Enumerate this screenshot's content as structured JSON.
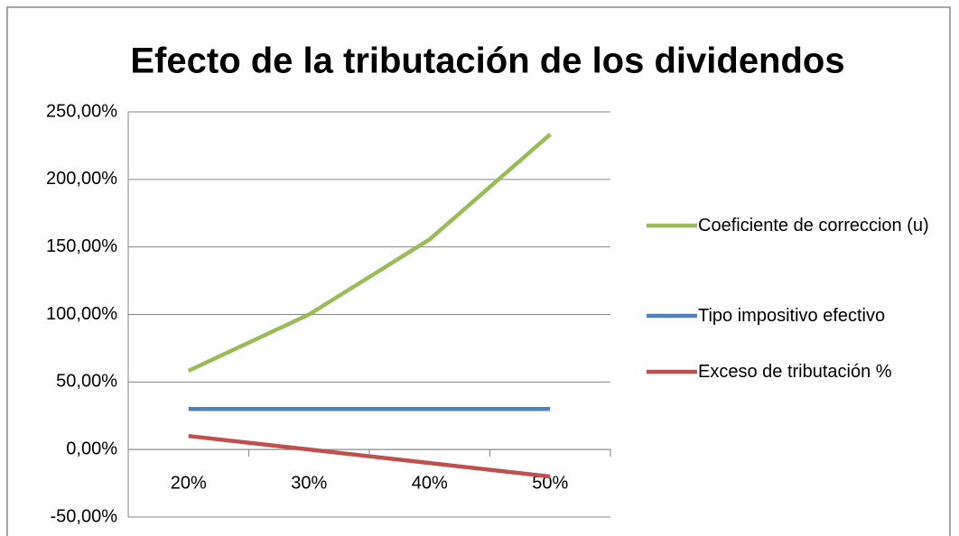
{
  "chart_data": {
    "type": "line",
    "title": "Efecto de la tributación de los dividendos",
    "categories": [
      "20%",
      "30%",
      "40%",
      "50%"
    ],
    "series": [
      {
        "name": "Coeficiente de correccion (u)",
        "color": "#9bbb59",
        "values": [
          58.33,
          100,
          155.56,
          233.33
        ]
      },
      {
        "name": "Tipo impositivo efectivo",
        "color": "#4f81bd",
        "values": [
          30,
          30,
          30,
          30
        ]
      },
      {
        "name": "Exceso de tributación %",
        "color": "#c0504d",
        "values": [
          10,
          0,
          -10,
          -20
        ]
      }
    ],
    "ylim": [
      -50,
      250
    ],
    "yticks": [
      {
        "value": -50,
        "label": "-50,00%"
      },
      {
        "value": 0,
        "label": "0,00%"
      },
      {
        "value": 50,
        "label": "50,00%"
      },
      {
        "value": 100,
        "label": "100,00%"
      },
      {
        "value": 150,
        "label": "150,00%"
      },
      {
        "value": 200,
        "label": "200,00%"
      },
      {
        "value": 250,
        "label": "250,00%"
      }
    ],
    "grid": true,
    "legend": "right"
  }
}
